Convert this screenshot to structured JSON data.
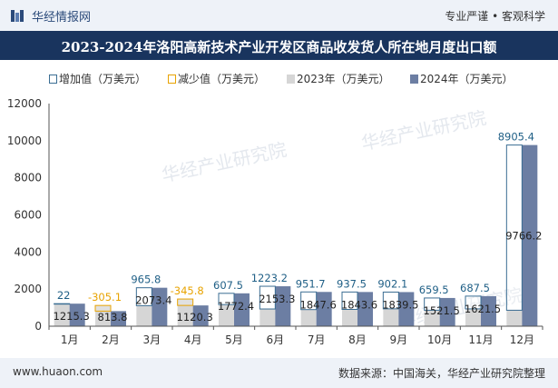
{
  "header": {
    "brand": "华经情报网",
    "slogan": "专业严谨 • 客观科学"
  },
  "title": "2023-2024年洛阳高新技术产业开发区商品收发货人所在地月度出口额",
  "legend": {
    "increase": "增加值（万美元）",
    "decrease": "减少值（万美元）",
    "y2023": "2023年（万美元）",
    "y2024": "2024年（万美元）"
  },
  "colors": {
    "bar2023": "#d6d6d6",
    "bar2024": "#6c7ea3",
    "increase": "#3a6d93",
    "decrease": "#e8a300",
    "header_bg": "#19345e"
  },
  "chart_data": {
    "type": "bar",
    "categories": [
      "1月",
      "2月",
      "3月",
      "4月",
      "5月",
      "6月",
      "7月",
      "8月",
      "9月",
      "10月",
      "11月",
      "12月"
    ],
    "series": [
      {
        "name": "2023年（万美元）",
        "values": [
          1193.3,
          1119.1,
          1107.6,
          1466.1,
          1164.9,
          929.1,
          895.9,
          906.1,
          937.4,
          861.6,
          934,
          860.8
        ]
      },
      {
        "name": "2024年（万美元）",
        "values": [
          1215.3,
          813.8,
          2073.4,
          1120.3,
          1772.4,
          2153.3,
          1847.6,
          1843.6,
          1839.5,
          1521.5,
          1621.5,
          9766.2
        ]
      },
      {
        "name": "增加值（万美元）",
        "values": [
          22,
          null,
          965.8,
          null,
          607.5,
          1223.2,
          951.7,
          937.5,
          902.1,
          659.5,
          687.5,
          8905.4
        ]
      },
      {
        "name": "减少值（万美元）",
        "values": [
          null,
          -305.1,
          null,
          -345.8,
          null,
          null,
          null,
          null,
          null,
          null,
          null,
          null
        ]
      }
    ],
    "change_labels": [
      "22",
      "-305.1",
      "965.8",
      "-345.8",
      "607.5",
      "1223.2",
      "951.7",
      "937.5",
      "902.1",
      "659.5",
      "687.5",
      "8905.4"
    ],
    "value_labels_2024": [
      "1215.3",
      "813.8",
      "2073.4",
      "1120.3",
      "1772.4",
      "2153.3",
      "1847.6",
      "1843.6",
      "1839.5",
      "1521.5",
      "1621.5",
      "9766.2"
    ],
    "yticks": [
      "0",
      "2000",
      "4000",
      "6000",
      "8000",
      "10000",
      "12000"
    ],
    "ylim": [
      0,
      12000
    ],
    "xlabel": "",
    "ylabel": "",
    "legend_position": "top-left",
    "grid": false
  },
  "watermark": "华经产业研究院",
  "footer": {
    "website": "www.huaon.com",
    "source": "数据来源：中国海关，华经产业研究院整理"
  }
}
